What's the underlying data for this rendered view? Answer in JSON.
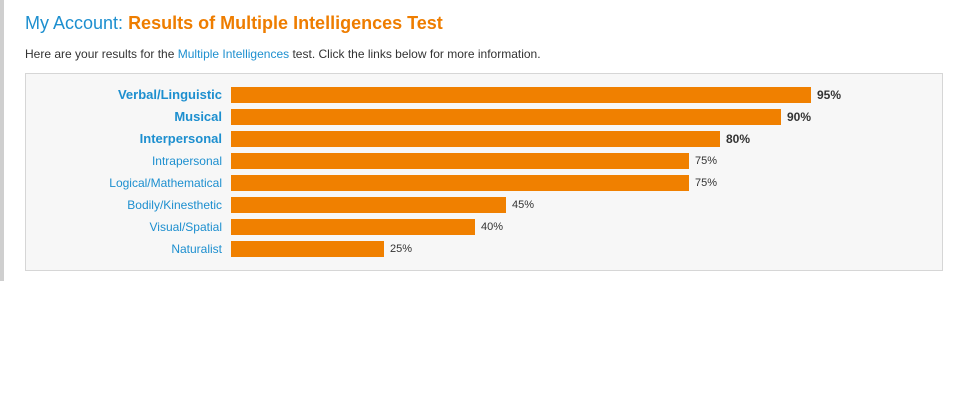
{
  "header": {
    "title_prefix": "My Account:",
    "title_main": "Results of Multiple Intelligences Test"
  },
  "intro": {
    "before_link": "Here are your results for the ",
    "link_text": "Multiple Intelligences",
    "after_link": " test. Click the links below for more information."
  },
  "colors": {
    "accent_blue": "#1d8fcf",
    "bar_orange": "#f08000",
    "title_orange": "#ee7d00"
  },
  "results": [
    {
      "label": "Verbal/Linguistic",
      "percent": 95,
      "value_text": "95%",
      "emphasis": true
    },
    {
      "label": "Musical",
      "percent": 90,
      "value_text": "90%",
      "emphasis": true
    },
    {
      "label": "Interpersonal",
      "percent": 80,
      "value_text": "80%",
      "emphasis": true
    },
    {
      "label": "Intrapersonal",
      "percent": 75,
      "value_text": "75%",
      "emphasis": false
    },
    {
      "label": "Logical/Mathematical",
      "percent": 75,
      "value_text": "75%",
      "emphasis": false
    },
    {
      "label": "Bodily/Kinesthetic",
      "percent": 45,
      "value_text": "45%",
      "emphasis": false
    },
    {
      "label": "Visual/Spatial",
      "percent": 40,
      "value_text": "40%",
      "emphasis": false
    },
    {
      "label": "Naturalist",
      "percent": 25,
      "value_text": "25%",
      "emphasis": false
    }
  ]
}
